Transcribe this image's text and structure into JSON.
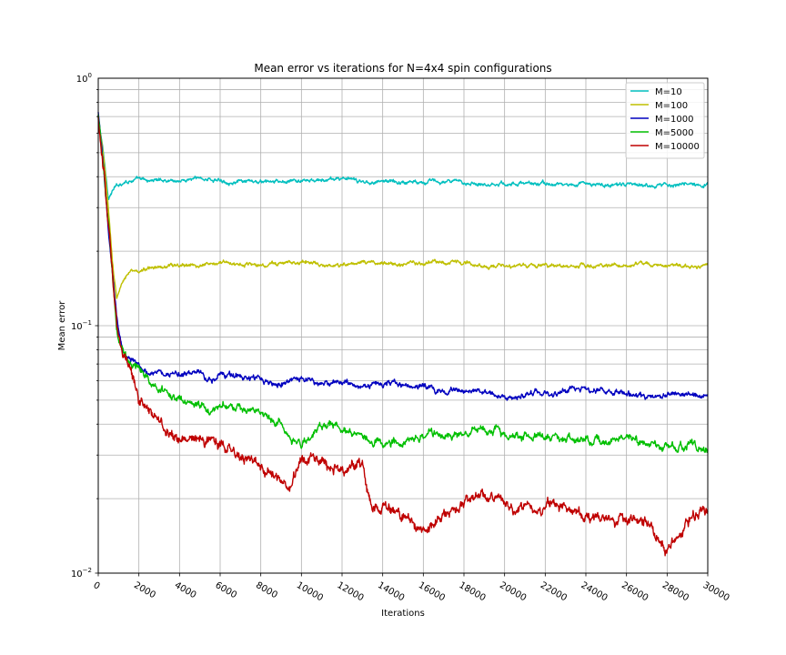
{
  "chart_data": {
    "type": "line",
    "title": "Mean error vs iterations for N=4x4 spin configurations",
    "xlabel": "Iterations",
    "ylabel": "Mean error",
    "xlim": [
      0,
      30000
    ],
    "ylim": [
      0.01,
      1
    ],
    "yscale": "log",
    "grid": true,
    "legend_position": "top-right",
    "x_ticks": [
      "0",
      "2000",
      "4000",
      "6000",
      "8000",
      "10000",
      "12000",
      "14000",
      "16000",
      "18000",
      "20000",
      "22000",
      "24000",
      "26000",
      "28000",
      "30000"
    ],
    "y_ticks": [
      {
        "base": "10",
        "exp": "0",
        "value": 1
      },
      {
        "base": "10",
        "exp": "−1",
        "value": 0.1
      },
      {
        "base": "10",
        "exp": "−2",
        "value": 0.01
      }
    ],
    "series": [
      {
        "name": "M=10",
        "color": "#00bfbf",
        "points": [
          [
            0,
            0.7
          ],
          [
            250,
            0.5
          ],
          [
            500,
            0.33
          ],
          [
            800,
            0.36
          ],
          [
            1200,
            0.38
          ],
          [
            1800,
            0.39
          ],
          [
            2500,
            0.385
          ],
          [
            3000,
            0.39
          ],
          [
            4000,
            0.385
          ],
          [
            5000,
            0.395
          ],
          [
            6000,
            0.385
          ],
          [
            7000,
            0.38
          ],
          [
            8000,
            0.38
          ],
          [
            9000,
            0.38
          ],
          [
            10000,
            0.385
          ],
          [
            11000,
            0.385
          ],
          [
            12000,
            0.395
          ],
          [
            13000,
            0.38
          ],
          [
            14000,
            0.385
          ],
          [
            15000,
            0.38
          ],
          [
            16000,
            0.385
          ],
          [
            17000,
            0.38
          ],
          [
            18000,
            0.38
          ],
          [
            19000,
            0.375
          ],
          [
            20000,
            0.375
          ],
          [
            21000,
            0.375
          ],
          [
            22000,
            0.375
          ],
          [
            23000,
            0.37
          ],
          [
            24000,
            0.375
          ],
          [
            25000,
            0.37
          ],
          [
            26000,
            0.37
          ],
          [
            27000,
            0.37
          ],
          [
            28000,
            0.375
          ],
          [
            29000,
            0.37
          ],
          [
            30000,
            0.37
          ]
        ]
      },
      {
        "name": "M=100",
        "color": "#bfbf00",
        "points": [
          [
            0,
            0.7
          ],
          [
            300,
            0.45
          ],
          [
            500,
            0.3
          ],
          [
            700,
            0.18
          ],
          [
            900,
            0.13
          ],
          [
            1200,
            0.15
          ],
          [
            1600,
            0.17
          ],
          [
            2000,
            0.165
          ],
          [
            2500,
            0.17
          ],
          [
            3000,
            0.175
          ],
          [
            4000,
            0.175
          ],
          [
            5000,
            0.175
          ],
          [
            6000,
            0.18
          ],
          [
            7000,
            0.18
          ],
          [
            8000,
            0.175
          ],
          [
            9000,
            0.18
          ],
          [
            10000,
            0.18
          ],
          [
            11000,
            0.175
          ],
          [
            12000,
            0.175
          ],
          [
            13000,
            0.18
          ],
          [
            14000,
            0.18
          ],
          [
            15000,
            0.175
          ],
          [
            16000,
            0.18
          ],
          [
            17000,
            0.18
          ],
          [
            18000,
            0.18
          ],
          [
            19000,
            0.175
          ],
          [
            20000,
            0.175
          ],
          [
            21000,
            0.175
          ],
          [
            22000,
            0.175
          ],
          [
            23000,
            0.175
          ],
          [
            24000,
            0.175
          ],
          [
            25000,
            0.175
          ],
          [
            26000,
            0.175
          ],
          [
            27000,
            0.18
          ],
          [
            28000,
            0.175
          ],
          [
            29000,
            0.175
          ],
          [
            30000,
            0.175
          ]
        ]
      },
      {
        "name": "M=1000",
        "color": "#0000bf",
        "points": [
          [
            0,
            0.72
          ],
          [
            300,
            0.4
          ],
          [
            600,
            0.2
          ],
          [
            900,
            0.11
          ],
          [
            1200,
            0.08
          ],
          [
            1500,
            0.075
          ],
          [
            2000,
            0.07
          ],
          [
            2500,
            0.065
          ],
          [
            3000,
            0.065
          ],
          [
            4000,
            0.063
          ],
          [
            5000,
            0.065
          ],
          [
            5500,
            0.06
          ],
          [
            6000,
            0.063
          ],
          [
            7000,
            0.062
          ],
          [
            8000,
            0.06
          ],
          [
            9000,
            0.058
          ],
          [
            10000,
            0.06
          ],
          [
            11000,
            0.058
          ],
          [
            12000,
            0.06
          ],
          [
            13000,
            0.057
          ],
          [
            14000,
            0.058
          ],
          [
            15000,
            0.057
          ],
          [
            16000,
            0.057
          ],
          [
            17000,
            0.054
          ],
          [
            18000,
            0.055
          ],
          [
            19000,
            0.054
          ],
          [
            20000,
            0.052
          ],
          [
            21000,
            0.053
          ],
          [
            22000,
            0.054
          ],
          [
            23000,
            0.054
          ],
          [
            24000,
            0.056
          ],
          [
            25000,
            0.054
          ],
          [
            26000,
            0.053
          ],
          [
            27000,
            0.051
          ],
          [
            28000,
            0.052
          ],
          [
            29000,
            0.053
          ],
          [
            30000,
            0.052
          ]
        ]
      },
      {
        "name": "M=5000",
        "color": "#00bf00",
        "points": [
          [
            0,
            0.7
          ],
          [
            300,
            0.4
          ],
          [
            600,
            0.2
          ],
          [
            900,
            0.1
          ],
          [
            1200,
            0.08
          ],
          [
            1500,
            0.07
          ],
          [
            2000,
            0.068
          ],
          [
            2500,
            0.06
          ],
          [
            3000,
            0.055
          ],
          [
            4000,
            0.05
          ],
          [
            5000,
            0.048
          ],
          [
            5500,
            0.044
          ],
          [
            6000,
            0.048
          ],
          [
            7000,
            0.046
          ],
          [
            8000,
            0.045
          ],
          [
            9000,
            0.04
          ],
          [
            9500,
            0.036
          ],
          [
            10000,
            0.033
          ],
          [
            11000,
            0.04
          ],
          [
            12000,
            0.039
          ],
          [
            13000,
            0.035
          ],
          [
            14000,
            0.033
          ],
          [
            15000,
            0.034
          ],
          [
            16000,
            0.035
          ],
          [
            17000,
            0.036
          ],
          [
            18000,
            0.037
          ],
          [
            19000,
            0.039
          ],
          [
            20000,
            0.036
          ],
          [
            21000,
            0.036
          ],
          [
            22000,
            0.035
          ],
          [
            23000,
            0.035
          ],
          [
            24000,
            0.035
          ],
          [
            25000,
            0.034
          ],
          [
            26000,
            0.036
          ],
          [
            27000,
            0.033
          ],
          [
            28000,
            0.032
          ],
          [
            29000,
            0.033
          ],
          [
            30000,
            0.031
          ]
        ]
      },
      {
        "name": "M=10000",
        "color": "#bf0000",
        "points": [
          [
            0,
            0.68
          ],
          [
            300,
            0.4
          ],
          [
            600,
            0.2
          ],
          [
            900,
            0.1
          ],
          [
            1200,
            0.08
          ],
          [
            1500,
            0.07
          ],
          [
            2000,
            0.05
          ],
          [
            2500,
            0.045
          ],
          [
            3000,
            0.04
          ],
          [
            3500,
            0.037
          ],
          [
            4000,
            0.034
          ],
          [
            5000,
            0.035
          ],
          [
            6000,
            0.034
          ],
          [
            7000,
            0.03
          ],
          [
            8000,
            0.027
          ],
          [
            9000,
            0.024
          ],
          [
            9500,
            0.022
          ],
          [
            10000,
            0.029
          ],
          [
            11000,
            0.028
          ],
          [
            12000,
            0.026
          ],
          [
            13000,
            0.028
          ],
          [
            13200,
            0.022
          ],
          [
            13500,
            0.018
          ],
          [
            14000,
            0.019
          ],
          [
            15000,
            0.017
          ],
          [
            16000,
            0.015
          ],
          [
            17000,
            0.017
          ],
          [
            18000,
            0.02
          ],
          [
            19000,
            0.021
          ],
          [
            20000,
            0.019
          ],
          [
            21000,
            0.018
          ],
          [
            22000,
            0.019
          ],
          [
            23000,
            0.018
          ],
          [
            24000,
            0.017
          ],
          [
            25000,
            0.017
          ],
          [
            26000,
            0.016
          ],
          [
            27000,
            0.016
          ],
          [
            27700,
            0.013
          ],
          [
            28000,
            0.012
          ],
          [
            28500,
            0.014
          ],
          [
            29000,
            0.016
          ],
          [
            29500,
            0.017
          ],
          [
            30000,
            0.018
          ]
        ]
      }
    ]
  }
}
